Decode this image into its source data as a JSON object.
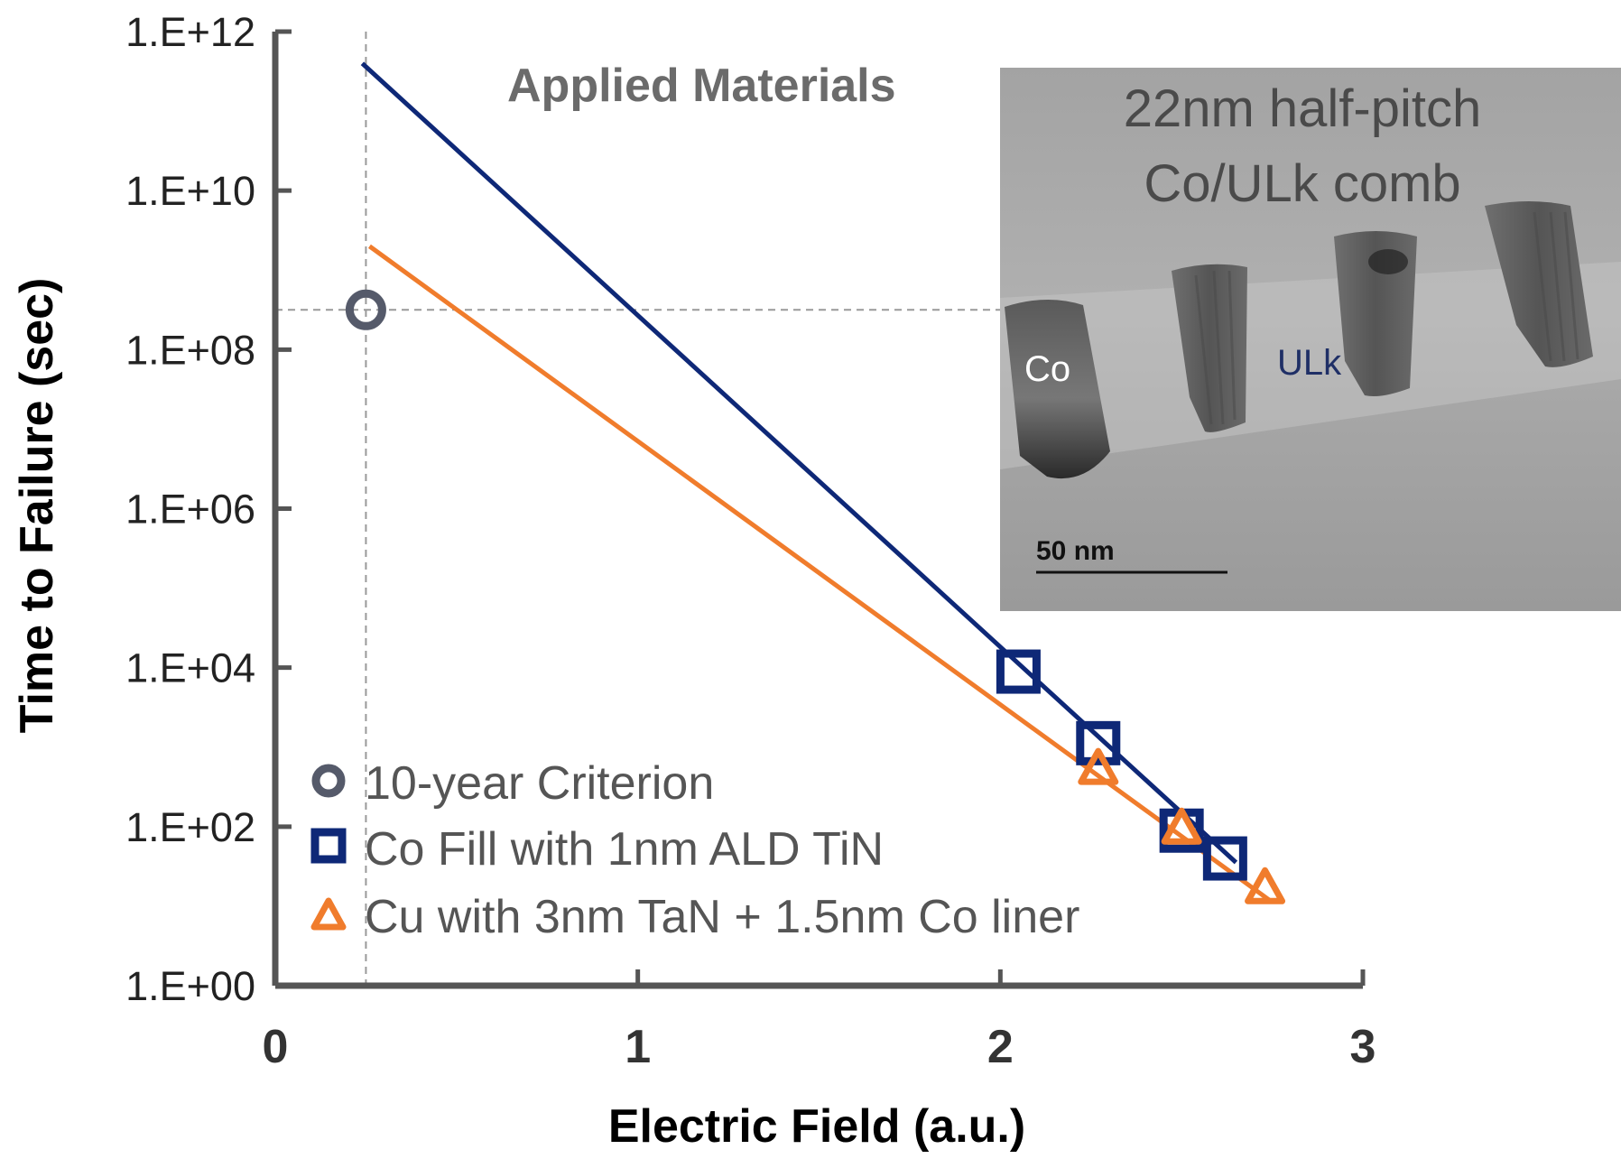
{
  "chart_data": {
    "type": "line",
    "title": "",
    "xlabel": "Electric Field (a.u.)",
    "ylabel": "Time to Failure (sec)",
    "xlim": [
      0,
      3
    ],
    "ylim_log10": [
      0,
      12
    ],
    "x_ticks": [
      "0",
      "1",
      "2",
      "3"
    ],
    "x_tick_values": [
      0,
      1,
      2,
      3
    ],
    "y_ticks": [
      "1.E+00",
      "1.E+02",
      "1.E+04",
      "1.E+06",
      "1.E+08",
      "1.E+10",
      "1.E+12"
    ],
    "y_tick_log10": [
      0,
      2,
      4,
      6,
      8,
      10,
      12
    ],
    "reference": {
      "criterion_x": 0.25,
      "criterion_y_log10": 8.5
    },
    "series": [
      {
        "name": "10-year Criterion",
        "marker": "circle",
        "color": "#555a6a",
        "points": [
          {
            "x": 0.25,
            "log10_y": 8.5
          }
        ]
      },
      {
        "name": "Co Fill with 1nm ALD TiN",
        "marker": "square",
        "color": "#0e2877",
        "points": [
          {
            "x": 2.05,
            "log10_y": 3.95
          },
          {
            "x": 2.27,
            "log10_y": 3.05
          },
          {
            "x": 2.5,
            "log10_y": 1.95
          },
          {
            "x": 2.62,
            "log10_y": 1.6
          }
        ],
        "fit_line": [
          {
            "x": 0.24,
            "log10_y": 11.6
          },
          {
            "x": 2.65,
            "log10_y": 1.55
          }
        ]
      },
      {
        "name": "Cu with 3nm TaN + 1.5nm Co liner",
        "marker": "triangle",
        "color": "#f07c2c",
        "points": [
          {
            "x": 2.27,
            "log10_y": 2.7
          },
          {
            "x": 2.5,
            "log10_y": 1.95
          },
          {
            "x": 2.73,
            "log10_y": 1.2
          }
        ],
        "fit_line": [
          {
            "x": 0.26,
            "log10_y": 9.3
          },
          {
            "x": 2.75,
            "log10_y": 1.05
          }
        ]
      }
    ],
    "annotations": [
      "Applied Materials"
    ],
    "legend_position": "bottom-left"
  },
  "inset": {
    "title_line1": "22nm half-pitch",
    "title_line2": "Co/ULk comb",
    "label_co": "Co",
    "label_ulk": "ULk",
    "scale_bar": "50 nm"
  }
}
